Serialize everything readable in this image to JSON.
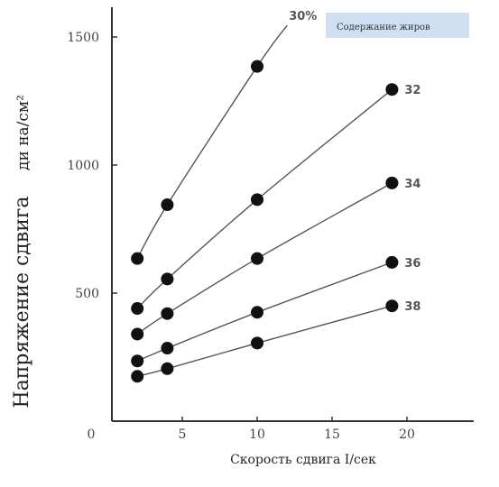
{
  "chart_data": {
    "type": "line",
    "xlabel": "Скорость сдвига I/сек",
    "ylabel": "Напряжение сдвига",
    "ylabel_unit": "ди на/см²",
    "legend_title": "Содержание жиров",
    "xlim": [
      0,
      25
    ],
    "ylim": [
      0,
      1650
    ],
    "xticks": [
      0,
      5,
      10,
      15,
      20
    ],
    "yticks": [
      500,
      1000,
      1500
    ],
    "grid": false,
    "series": [
      {
        "name": "30%",
        "x": [
          2,
          4,
          10,
          12
        ],
        "y": [
          635,
          845,
          1385,
          1545
        ],
        "marker_count": 3
      },
      {
        "name": "32",
        "x": [
          2,
          4,
          10,
          19
        ],
        "y": [
          440,
          555,
          865,
          1295
        ],
        "marker_count": 4
      },
      {
        "name": "34",
        "x": [
          2,
          4,
          10,
          19
        ],
        "y": [
          340,
          420,
          635,
          930
        ],
        "marker_count": 4
      },
      {
        "name": "36",
        "x": [
          2,
          4,
          10,
          19
        ],
        "y": [
          235,
          285,
          425,
          620
        ],
        "marker_count": 4
      },
      {
        "name": "38",
        "x": [
          2,
          4,
          10,
          19
        ],
        "y": [
          175,
          205,
          305,
          450
        ],
        "marker_count": 4
      }
    ]
  }
}
